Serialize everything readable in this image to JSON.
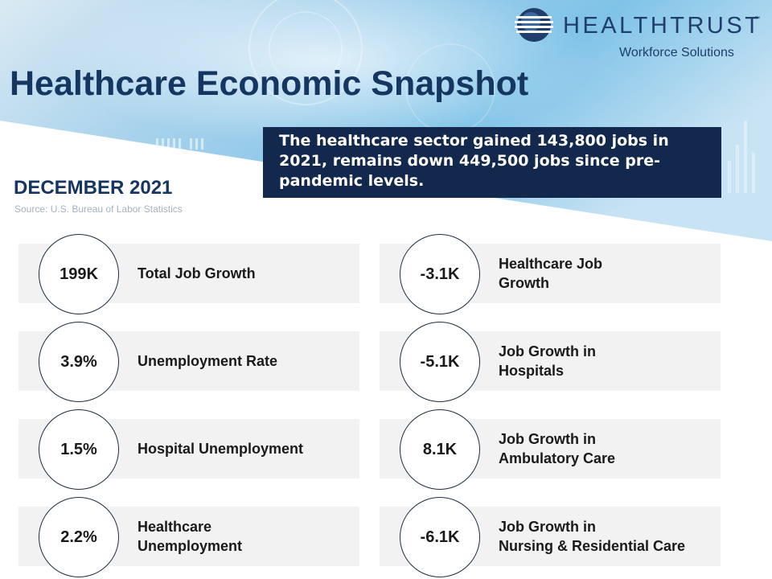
{
  "logo": {
    "name": "HEALTHTRUST",
    "trademark": "™",
    "subtitle": "Workforce Solutions"
  },
  "title": "Healthcare Economic Snapshot",
  "callout": "The healthcare sector gained 143,800 jobs in 2021, remains down 449,500 jobs since pre-pandemic levels.",
  "period": "DECEMBER 2021",
  "source": "Source: U.S. Bureau of Labor Statistics",
  "metrics_left": [
    {
      "value": "199K",
      "label": "Total Job Growth"
    },
    {
      "value": "3.9%",
      "label": "Unemployment  Rate"
    },
    {
      "value": "1.5%",
      "label": "Hospital Unemployment"
    },
    {
      "value": "2.2%",
      "label": "Healthcare\nUnemployment"
    }
  ],
  "metrics_right": [
    {
      "value": "-3.1K",
      "label": "Healthcare Job\nGrowth"
    },
    {
      "value": "-5.1K",
      "label": "Job Growth in\nHospitals"
    },
    {
      "value": "8.1K",
      "label": "Job Growth in\nAmbulatory  Care"
    },
    {
      "value": "-6.1K",
      "label": "Job Growth in\nNursing & Residential Care"
    }
  ],
  "colors": {
    "navy": "#143660",
    "callout_bg": "#13284d",
    "card_bg": "#f2f2f2",
    "source_text": "#a6b1bd",
    "hero_blue": "#8fc8e8"
  }
}
